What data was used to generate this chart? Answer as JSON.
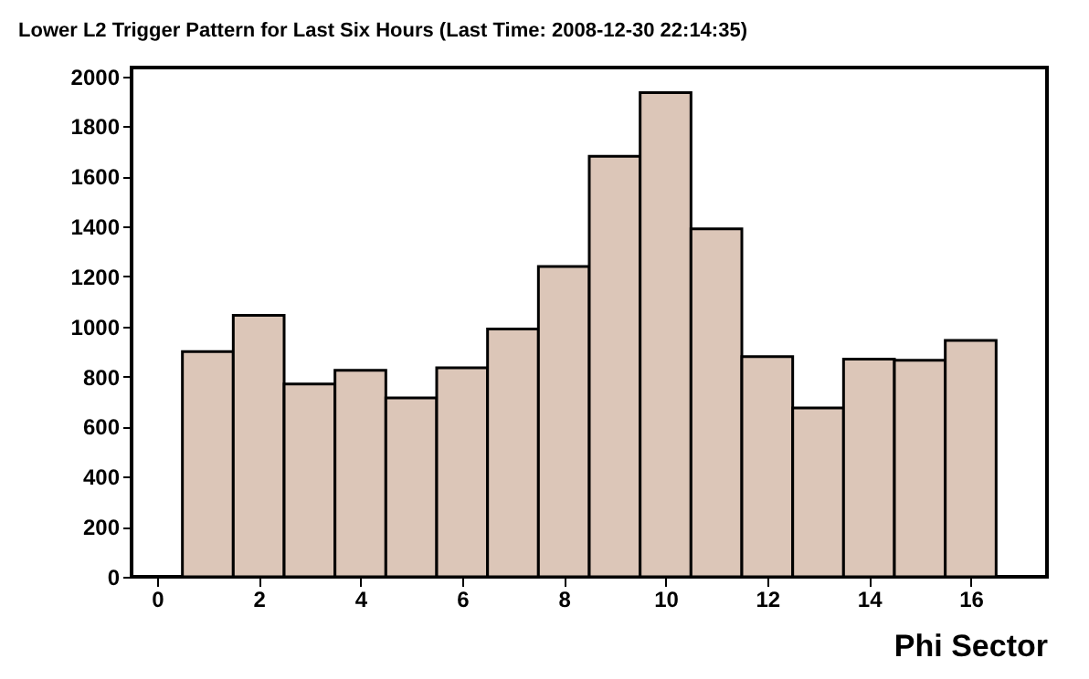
{
  "chart_data": {
    "type": "histogram",
    "title": "Lower L2 Trigger Pattern for Last Six Hours (Last Time: 2008-12-30 22:14:35)",
    "xlabel": "Phi Sector",
    "bins": [
      0.5,
      1.5,
      2.5,
      3.5,
      4.5,
      5.5,
      6.5,
      7.5,
      8.5,
      9.5,
      10.5,
      11.5,
      12.5,
      13.5,
      14.5,
      15.5,
      16.5
    ],
    "values": [
      900,
      1045,
      770,
      825,
      715,
      835,
      990,
      1240,
      1680,
      1935,
      1390,
      880,
      675,
      870,
      865,
      945
    ],
    "color": "#dcc6b8",
    "xlim": [
      -0.5,
      17.5
    ],
    "xticks": [
      0,
      2,
      4,
      6,
      8,
      10,
      12,
      14,
      16
    ],
    "ylim": [
      0,
      2035
    ],
    "yticks": [
      0,
      200,
      400,
      600,
      800,
      1000,
      1200,
      1400,
      1600,
      1800,
      2000
    ]
  }
}
